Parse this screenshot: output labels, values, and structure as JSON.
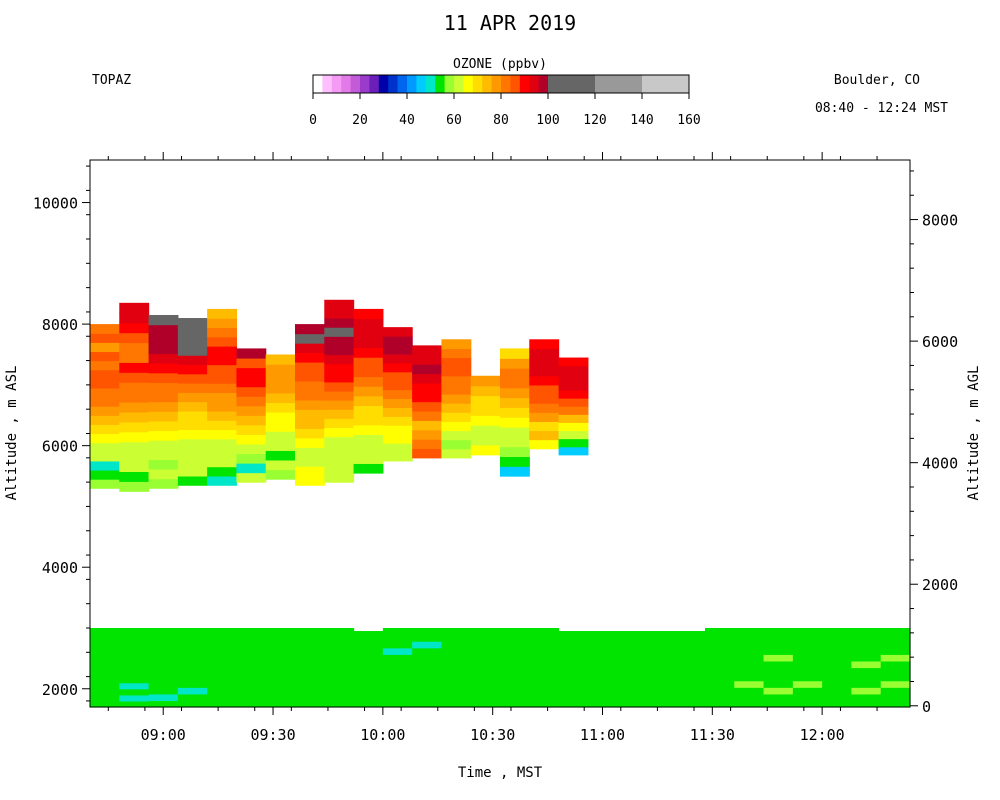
{
  "chart_data": {
    "type": "heatmap",
    "title": "11 APR 2019",
    "site": "TOPAZ",
    "location": "Boulder, CO",
    "time_range": "08:40 - 12:24 MST",
    "colorbar": {
      "label": "OZONE (ppbv)",
      "ticks": [
        "0",
        "20",
        "40",
        "60",
        "80",
        "100",
        "120",
        "140",
        "160"
      ],
      "range": [
        0,
        160
      ],
      "bins": [
        {
          "from": 0,
          "to": 4,
          "color": "#ffffff"
        },
        {
          "from": 4,
          "to": 8,
          "color": "#ffbfff"
        },
        {
          "from": 8,
          "to": 12,
          "color": "#f59af5"
        },
        {
          "from": 12,
          "to": 16,
          "color": "#e27ae8"
        },
        {
          "from": 16,
          "to": 20,
          "color": "#c35ad8"
        },
        {
          "from": 20,
          "to": 24,
          "color": "#9a3bcc"
        },
        {
          "from": 24,
          "to": 28,
          "color": "#6a1fb8"
        },
        {
          "from": 28,
          "to": 32,
          "color": "#0000aa"
        },
        {
          "from": 32,
          "to": 36,
          "color": "#0033cc"
        },
        {
          "from": 36,
          "to": 40,
          "color": "#0066ee"
        },
        {
          "from": 40,
          "to": 44,
          "color": "#0099ff"
        },
        {
          "from": 44,
          "to": 48,
          "color": "#00ccff"
        },
        {
          "from": 48,
          "to": 52,
          "color": "#00e6c8"
        },
        {
          "from": 52,
          "to": 56,
          "color": "#00e400"
        },
        {
          "from": 56,
          "to": 60,
          "color": "#99ff33"
        },
        {
          "from": 60,
          "to": 64,
          "color": "#ccff33"
        },
        {
          "from": 64,
          "to": 68,
          "color": "#ffff00"
        },
        {
          "from": 68,
          "to": 72,
          "color": "#ffdd00"
        },
        {
          "from": 72,
          "to": 76,
          "color": "#ffbb00"
        },
        {
          "from": 76,
          "to": 80,
          "color": "#ff9900"
        },
        {
          "from": 80,
          "to": 84,
          "color": "#ff7700"
        },
        {
          "from": 84,
          "to": 88,
          "color": "#ff5500"
        },
        {
          "from": 88,
          "to": 92,
          "color": "#ff0000"
        },
        {
          "from": 92,
          "to": 96,
          "color": "#e00010"
        },
        {
          "from": 96,
          "to": 100,
          "color": "#b0002a"
        },
        {
          "from": 100,
          "to": 120,
          "color": "#666666"
        },
        {
          "from": 120,
          "to": 140,
          "color": "#999999"
        },
        {
          "from": 140,
          "to": 160,
          "color": "#c8c8c8"
        }
      ]
    },
    "xlabel": "Time , MST",
    "ylabel_left": "Altitude , m ASL",
    "ylabel_right": "Altitude , m AGL",
    "x_range": [
      "08:40",
      "12:24"
    ],
    "x_ticks": [
      "09:00",
      "09:30",
      "10:00",
      "10:30",
      "11:00",
      "11:30",
      "12:00"
    ],
    "ylim_left": [
      1700,
      10700
    ],
    "y_ticks_left": [
      "2000",
      "4000",
      "6000",
      "8000",
      "10000"
    ],
    "ylim_right": [
      -20,
      8980
    ],
    "y_ticks_right": [
      "0",
      "2000",
      "4000",
      "6000",
      "8000"
    ],
    "columns": [
      {
        "start": "08:40",
        "end": "08:48",
        "top": 8000,
        "bottom": 5300,
        "low_top": 3000
      },
      {
        "start": "08:48",
        "end": "08:56",
        "top": 8350,
        "bottom": 5250,
        "low_top": 3000
      },
      {
        "start": "08:56",
        "end": "09:04",
        "top": 8150,
        "bottom": 5300,
        "low_top": 3000
      },
      {
        "start": "09:04",
        "end": "09:12",
        "top": 8100,
        "bottom": 5350,
        "low_top": 3000
      },
      {
        "start": "09:12",
        "end": "09:20",
        "top": 8250,
        "bottom": 5350,
        "low_top": 3000
      },
      {
        "start": "09:20",
        "end": "09:28",
        "top": 7600,
        "bottom": 5400,
        "low_top": 3000
      },
      {
        "start": "09:28",
        "end": "09:36",
        "top": 7500,
        "bottom": 5450,
        "low_top": 3000
      },
      {
        "start": "09:36",
        "end": "09:44",
        "top": 8000,
        "bottom": 5350,
        "low_top": 3000
      },
      {
        "start": "09:44",
        "end": "09:52",
        "top": 8400,
        "bottom": 5400,
        "low_top": 3000
      },
      {
        "start": "09:52",
        "end": "10:00",
        "top": 8250,
        "bottom": 5550,
        "low_top": 2950
      },
      {
        "start": "10:00",
        "end": "10:08",
        "top": 7950,
        "bottom": 5750,
        "low_top": 3000
      },
      {
        "start": "10:08",
        "end": "10:16",
        "top": 7650,
        "bottom": 5800,
        "low_top": 3000
      },
      {
        "start": "10:16",
        "end": "10:24",
        "top": 7750,
        "bottom": 5800,
        "low_top": 3000
      },
      {
        "start": "10:24",
        "end": "10:32",
        "top": 7150,
        "bottom": 5850,
        "low_top": 3000
      },
      {
        "start": "10:32",
        "end": "10:40",
        "top": 7600,
        "bottom": 5500,
        "low_top": 3000
      },
      {
        "start": "10:40",
        "end": "10:48",
        "top": 7750,
        "bottom": 5950,
        "low_top": 3000
      },
      {
        "start": "10:48",
        "end": "10:56",
        "top": 7450,
        "bottom": 5850,
        "low_top": 2950
      },
      {
        "start": "10:56",
        "end": "11:04",
        "top": null,
        "bottom": null,
        "low_top": 2950
      },
      {
        "start": "11:04",
        "end": "11:12",
        "top": null,
        "bottom": null,
        "low_top": 2950
      },
      {
        "start": "11:12",
        "end": "11:20",
        "top": null,
        "bottom": null,
        "low_top": 2950
      },
      {
        "start": "11:20",
        "end": "11:28",
        "top": null,
        "bottom": null,
        "low_top": 2950
      },
      {
        "start": "11:28",
        "end": "11:36",
        "top": null,
        "bottom": null,
        "low_top": 3000
      },
      {
        "start": "11:36",
        "end": "11:44",
        "top": null,
        "bottom": null,
        "low_top": 3000
      },
      {
        "start": "11:44",
        "end": "11:52",
        "top": null,
        "bottom": null,
        "low_top": 3000
      },
      {
        "start": "11:52",
        "end": "12:00",
        "top": null,
        "bottom": null,
        "low_top": 3000
      },
      {
        "start": "12:00",
        "end": "12:08",
        "top": null,
        "bottom": null,
        "low_top": 3000
      },
      {
        "start": "12:08",
        "end": "12:16",
        "top": null,
        "bottom": null,
        "low_top": 3000
      },
      {
        "start": "12:16",
        "end": "12:24",
        "top": null,
        "bottom": null,
        "low_top": 3000
      }
    ],
    "upper_profile_ozone": [
      [
        56,
        55,
        50,
        62,
        60,
        67,
        70,
        73,
        76,
        80,
        80,
        84,
        86,
        80,
        84,
        76,
        84,
        80
      ],
      [
        56,
        54,
        62,
        61,
        61,
        66,
        70,
        74,
        78,
        80,
        83,
        86,
        88,
        80,
        82,
        84,
        88,
        92,
        94
      ],
      [
        56,
        60,
        56,
        61,
        60,
        64,
        69,
        72,
        76,
        80,
        82,
        84,
        88,
        92,
        96,
        97,
        96,
        100
      ],
      [
        55,
        61,
        60,
        60,
        60,
        64,
        68,
        70,
        74,
        78,
        82,
        86,
        90,
        95,
        104,
        100,
        105,
        110
      ],
      [
        50,
        54,
        60,
        61,
        62,
        65,
        70,
        74,
        76,
        78,
        80,
        84,
        86,
        88,
        90,
        84,
        80,
        76,
        72
      ],
      [
        61,
        51,
        59,
        62,
        66,
        70,
        74,
        76,
        80,
        84,
        88,
        90,
        86,
        96
      ],
      [
        56,
        61,
        52,
        60,
        62,
        64,
        67,
        70,
        72,
        76,
        78,
        76,
        74
      ],
      [
        64,
        66,
        61,
        60,
        64,
        68,
        72,
        74,
        76,
        80,
        82,
        84,
        86,
        88,
        92,
        110,
        96
      ],
      [
        61,
        60,
        60,
        60,
        62,
        66,
        70,
        72,
        76,
        80,
        84,
        88,
        90,
        92,
        96,
        98,
        100,
        98,
        95,
        92
      ],
      [
        54,
        61,
        60,
        60,
        64,
        68,
        70,
        74,
        78,
        82,
        84,
        86,
        90,
        92,
        93,
        94,
        90
      ],
      [
        60,
        62,
        64,
        66,
        70,
        74,
        78,
        82,
        84,
        86,
        88,
        92,
        96,
        97,
        94
      ],
      [
        86,
        80,
        76,
        74,
        82,
        86,
        88,
        90,
        94,
        96,
        92,
        94
      ],
      [
        60,
        56,
        62,
        64,
        68,
        72,
        76,
        80,
        82,
        84,
        86,
        80,
        76
      ],
      [
        66,
        62,
        60,
        64,
        68,
        70,
        74,
        76
      ],
      [
        47,
        53,
        58,
        60,
        62,
        66,
        70,
        74,
        78,
        80,
        82,
        78,
        70
      ],
      [
        66,
        72,
        70,
        76,
        80,
        84,
        86,
        90,
        94,
        92,
        94,
        90
      ],
      [
        46,
        52,
        60,
        66,
        72,
        80,
        86,
        90,
        92,
        95,
        93,
        91
      ],
      [],
      [],
      [],
      [],
      [],
      [],
      [],
      [],
      [],
      [],
      []
    ],
    "lower_profile_ozone": [
      [
        52,
        52,
        55,
        52,
        55,
        52,
        55,
        52,
        55,
        55,
        52,
        55
      ],
      [
        52,
        49,
        52,
        49,
        52,
        55,
        52,
        55,
        53,
        55,
        52,
        55,
        55
      ],
      [
        52,
        49,
        52,
        52,
        55,
        52,
        55,
        52,
        55,
        52,
        55,
        55
      ],
      [
        52,
        52,
        49,
        52,
        55,
        52,
        52,
        55,
        52,
        55,
        55,
        55
      ],
      [
        52,
        52,
        52,
        55,
        52,
        55,
        52,
        55,
        52,
        52,
        55,
        55
      ],
      [
        52,
        52,
        55,
        52,
        52,
        55,
        52,
        55,
        52,
        55,
        52,
        52
      ],
      [
        52,
        55,
        52,
        52,
        55,
        52,
        52,
        55,
        52,
        52,
        52,
        52
      ],
      [
        52,
        52,
        55,
        52,
        55,
        52,
        52,
        55,
        52,
        52,
        52,
        52
      ],
      [
        52,
        52,
        52,
        55,
        52,
        52,
        55,
        52,
        52,
        52,
        55,
        52
      ],
      [
        52,
        52,
        55,
        52,
        55,
        52,
        55,
        52,
        55,
        52,
        52,
        52
      ],
      [
        52,
        52,
        55,
        52,
        52,
        55,
        52,
        52,
        49,
        52,
        52,
        52
      ],
      [
        52,
        55,
        52,
        52,
        55,
        52,
        55,
        52,
        52,
        49,
        52,
        52
      ],
      [
        52,
        55,
        52,
        55,
        52,
        55,
        52,
        55,
        52,
        52,
        52,
        52
      ],
      [
        52,
        52,
        55,
        52,
        55,
        52,
        52,
        55,
        52,
        52,
        55,
        52
      ],
      [
        52,
        55,
        52,
        55,
        52,
        55,
        52,
        52,
        55,
        52,
        52,
        52
      ],
      [
        52,
        52,
        55,
        52,
        55,
        52,
        55,
        52,
        52,
        52,
        55,
        52
      ],
      [
        52,
        55,
        52,
        55,
        52,
        55,
        52,
        55,
        52,
        52,
        52,
        52
      ],
      [
        52,
        52,
        55,
        52,
        55,
        55,
        52,
        55,
        52,
        55,
        52,
        52
      ],
      [
        52,
        55,
        52,
        55,
        52,
        55,
        52,
        55,
        52,
        52,
        52,
        52
      ],
      [
        52,
        52,
        55,
        52,
        55,
        52,
        52,
        55,
        52,
        52,
        52,
        52
      ],
      [
        52,
        55,
        52,
        55,
        55,
        52,
        52,
        55,
        52,
        52,
        52,
        52
      ],
      [
        52,
        52,
        52,
        55,
        52,
        55,
        52,
        52,
        55,
        52,
        52,
        52
      ],
      [
        52,
        55,
        52,
        58,
        52,
        55,
        52,
        55,
        52,
        52,
        55,
        52
      ],
      [
        52,
        52,
        58,
        55,
        52,
        55,
        52,
        58,
        55,
        52,
        52,
        52
      ],
      [
        52,
        55,
        52,
        58,
        55,
        52,
        55,
        52,
        55,
        52,
        52,
        52
      ],
      [
        52,
        55,
        52,
        55,
        52,
        55,
        55,
        52,
        55,
        52,
        52,
        52
      ],
      [
        52,
        52,
        58,
        52,
        55,
        52,
        58,
        55,
        52,
        52,
        52,
        52
      ],
      [
        52,
        55,
        52,
        58,
        52,
        55,
        52,
        58,
        55,
        52,
        52,
        52
      ]
    ]
  }
}
